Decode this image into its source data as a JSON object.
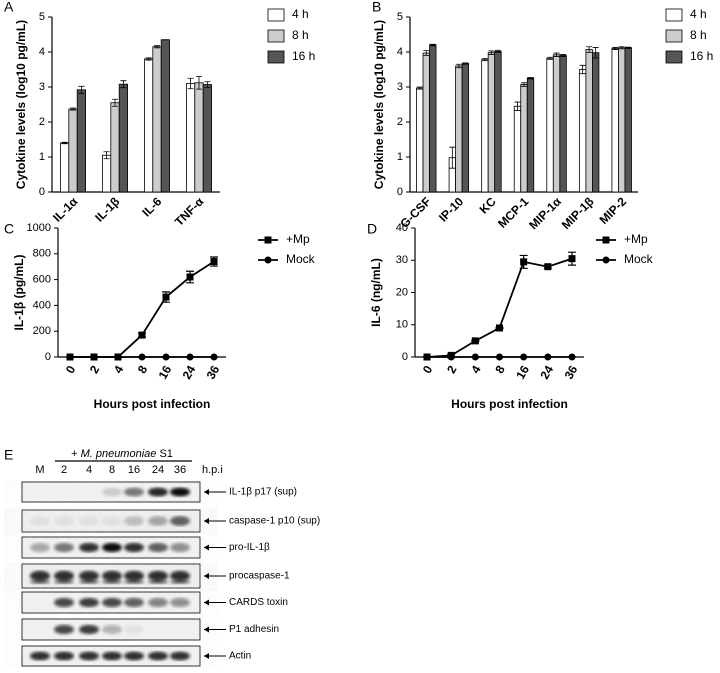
{
  "chart_data": [
    {
      "type": "bar",
      "panel": "A",
      "ylabel": "Cytokine levels (log10 pg/mL)",
      "categories": [
        "IL-1α",
        "IL-1β",
        "IL-6",
        "TNF-α"
      ],
      "series": [
        {
          "name": "4 h",
          "color": "#ffffff",
          "values": [
            1.4,
            1.05,
            3.8,
            3.1
          ],
          "errors": [
            0.02,
            0.1,
            0.03,
            0.15
          ]
        },
        {
          "name": "8 h",
          "color": "#cccccc",
          "values": [
            2.37,
            2.55,
            4.15,
            3.12
          ],
          "errors": [
            0.03,
            0.1,
            0.03,
            0.18
          ]
        },
        {
          "name": "16 h",
          "color": "#555555",
          "values": [
            2.92,
            3.08,
            4.35,
            3.07
          ],
          "errors": [
            0.1,
            0.1,
            0,
            0.08
          ]
        }
      ],
      "ylim": [
        0,
        5
      ],
      "yticks": [
        0,
        1,
        2,
        3,
        4,
        5
      ],
      "legend": "right"
    },
    {
      "type": "bar",
      "panel": "B",
      "ylabel": "Cytokine levels (log10 pg/mL)",
      "categories": [
        "G-CSF",
        "IP-10",
        "KC",
        "MCP-1",
        "MIP-1α",
        "MIP-1β",
        "MIP-2"
      ],
      "series": [
        {
          "name": "4 h",
          "color": "#ffffff",
          "values": [
            2.97,
            0.98,
            3.78,
            2.45,
            3.82,
            3.5,
            4.1
          ],
          "errors": [
            0.03,
            0.3,
            0.03,
            0.12,
            0.03,
            0.12,
            0.03
          ]
        },
        {
          "name": "8 h",
          "color": "#cccccc",
          "values": [
            3.97,
            3.6,
            3.98,
            3.07,
            3.92,
            4.07,
            4.12
          ],
          "errors": [
            0.07,
            0.05,
            0.05,
            0.05,
            0.05,
            0.08,
            0.03
          ]
        },
        {
          "name": "16 h",
          "color": "#555555",
          "values": [
            4.2,
            3.67,
            4.02,
            3.25,
            3.9,
            3.98,
            4.12
          ],
          "errors": [
            0.02,
            0.02,
            0.03,
            0.02,
            0.03,
            0.15,
            0.02
          ]
        }
      ],
      "ylim": [
        0,
        5
      ],
      "yticks": [
        0,
        1,
        2,
        3,
        4,
        5
      ],
      "legend": "right"
    },
    {
      "type": "line",
      "panel": "C",
      "ylabel": "IL-1β (pg/mL)",
      "xlabel": "Hours post infection",
      "categories": [
        "0",
        "2",
        "4",
        "8",
        "16",
        "24",
        "36"
      ],
      "series": [
        {
          "name": "+Mp",
          "color": "#000000",
          "marker": "square",
          "values": [
            0,
            0,
            0,
            170,
            465,
            620,
            740
          ],
          "errors": [
            0,
            0,
            0,
            15,
            40,
            45,
            35
          ]
        },
        {
          "name": "Mock",
          "color": "#000000",
          "marker": "circle",
          "values": [
            0,
            0,
            0,
            0,
            0,
            0,
            0
          ],
          "errors": [
            0,
            0,
            0,
            0,
            0,
            0,
            0
          ]
        }
      ],
      "ylim": [
        0,
        1000
      ],
      "yticks": [
        0,
        200,
        400,
        600,
        800,
        1000
      ],
      "legend": "right"
    },
    {
      "type": "line",
      "panel": "D",
      "ylabel": "IL-6 (ng/mL)",
      "xlabel": "Hours post infection",
      "categories": [
        "0",
        "2",
        "4",
        "8",
        "16",
        "24",
        "36"
      ],
      "series": [
        {
          "name": "+Mp",
          "color": "#000000",
          "marker": "square",
          "values": [
            0,
            0.5,
            5,
            9,
            29.5,
            28,
            30.5
          ],
          "errors": [
            0,
            0.3,
            0.2,
            0.2,
            2,
            0.5,
            2
          ]
        },
        {
          "name": "Mock",
          "color": "#000000",
          "marker": "circle",
          "values": [
            0,
            0,
            0,
            0,
            0,
            0,
            0
          ],
          "errors": [
            0,
            0,
            0,
            0,
            0,
            0,
            0
          ]
        }
      ],
      "ylim": [
        0,
        40
      ],
      "yticks": [
        0,
        10,
        20,
        30,
        40
      ],
      "legend": "right"
    }
  ],
  "blot": {
    "panel": "E",
    "mock_lane": "M",
    "treatment": {
      "prefix": "+",
      "organism": "M. pneumoniae",
      "strain": "S1"
    },
    "lanes": [
      "2",
      "4",
      "8",
      "16",
      "24",
      "36"
    ],
    "time_unit": "h.p.i",
    "rows": [
      "IL-1β p17 (sup)",
      "caspase-1 p10 (sup)",
      "pro-IL-1β",
      "procaspase-1",
      "CARDS toxin",
      "P1 adhesin",
      "Actin"
    ]
  }
}
